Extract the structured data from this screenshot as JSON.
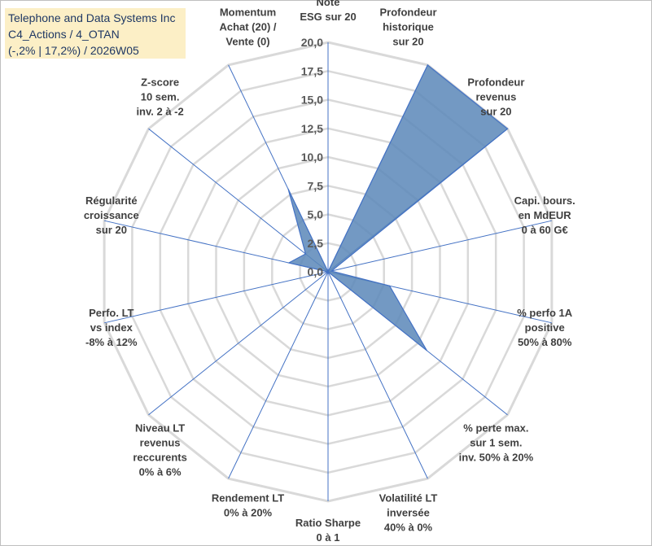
{
  "header": {
    "line1": "Telephone and Data Systems Inc",
    "line2": "C4_Actions / 4_OTAN",
    "line3": "(-,2% | 17,2%) / 2026W05"
  },
  "chart_data": {
    "type": "radar",
    "rlim": [
      0,
      20
    ],
    "ticks": [
      "0,0",
      "2,5",
      "5,0",
      "7,5",
      "10,0",
      "12,5",
      "15,0",
      "17,5",
      "20,0"
    ],
    "grid": true,
    "axes": [
      [
        "Note",
        "ESG sur 20"
      ],
      [
        "Profondeur",
        "historique",
        "sur 20"
      ],
      [
        "Profondeur",
        "revenus",
        "sur 20"
      ],
      [
        "Capi. bours.",
        "en MdEUR",
        "0 à 60 G€"
      ],
      [
        "% perfo 1A",
        "positive",
        "50% à 80%"
      ],
      [
        "% perte max.",
        "sur 1 sem.",
        "inv. 50% à 20%"
      ],
      [
        "Volatilité LT",
        "inversée",
        "40% à 0%"
      ],
      [
        "Ratio Sharpe",
        "0 à 1"
      ],
      [
        "Rendement LT",
        "0% à 20%"
      ],
      [
        "Niveau LT",
        "revenus",
        "reccurents",
        "0% à 6%"
      ],
      [
        "Perfo. LT",
        "vs index",
        "-8% à 12%"
      ],
      [
        "Régularité",
        "croissance",
        "sur 20"
      ],
      [
        "Z-score",
        "10 sem.",
        "inv. 2 à -2"
      ],
      [
        "Momentum",
        "Achat (20) /",
        "Vente (0)"
      ]
    ],
    "series": [
      {
        "values": [
          0,
          20,
          20,
          0.3,
          5.5,
          11,
          0,
          0,
          0,
          0,
          0,
          3.5,
          2.5,
          8
        ],
        "color": "#5b87b9",
        "stroke": "#4472c4"
      }
    ]
  }
}
